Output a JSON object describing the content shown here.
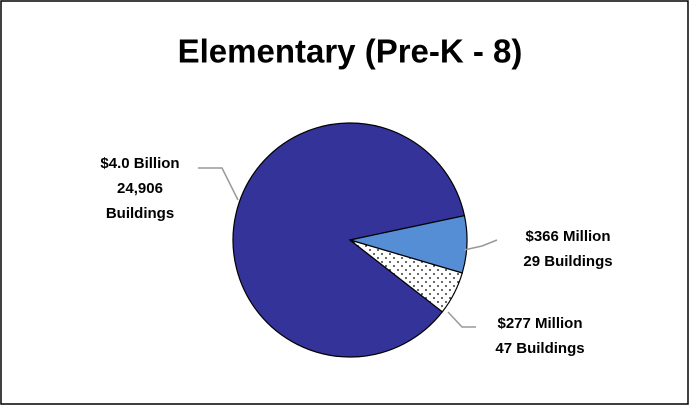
{
  "chart_data": {
    "type": "pie",
    "title": "Elementary (Pre-K - 8)",
    "values": [
      4000000000,
      366000000,
      277000000
    ],
    "value_labels": [
      [
        "$4.0 Billion",
        "24,906",
        "Buildings"
      ],
      [
        "$366 Million",
        "29 Buildings"
      ],
      [
        "$277 Million",
        "47 Buildings"
      ]
    ],
    "colors": [
      "#333399",
      "#558ed5",
      "#ffffff"
    ]
  }
}
